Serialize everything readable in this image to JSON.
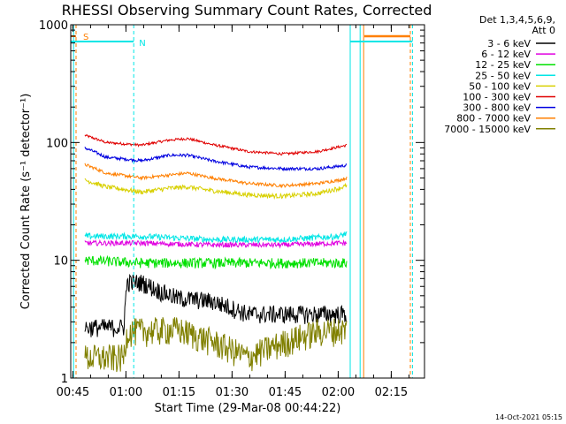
{
  "chart_data": {
    "type": "line",
    "title": "RHESSI Observing Summary Count Rates, Corrected",
    "xlabel": "Start Time (29-Mar-08 00:44:22)",
    "ylabel": "Corrected Count Rate (s⁻¹ detector⁻¹)",
    "x_unit": "minutes after 00:44:22 UT",
    "xlim": [
      0,
      100
    ],
    "ylim": [
      1,
      1000
    ],
    "yscale": "log",
    "grid": false,
    "x_ticks": [
      {
        "label": "00:45",
        "x": 0.6
      },
      {
        "label": "01:00",
        "x": 15.6
      },
      {
        "label": "01:15",
        "x": 30.6
      },
      {
        "label": "01:30",
        "x": 45.6
      },
      {
        "label": "01:45",
        "x": 60.6
      },
      {
        "label": "02:00",
        "x": 75.6
      },
      {
        "label": "02:15",
        "x": 90.6
      }
    ],
    "y_ticks": [
      {
        "label": "1",
        "y": 1
      },
      {
        "label": "10",
        "y": 10
      },
      {
        "label": "100",
        "y": 100
      },
      {
        "label": "1000",
        "y": 1000
      }
    ],
    "legend": {
      "position": "right",
      "header": [
        "Det 1,3,4,5,6,9,",
        "Att 0"
      ],
      "entries": [
        {
          "label": "3 - 6 keV",
          "color": "#000000"
        },
        {
          "label": "6 - 12 keV",
          "color": "#e000e0"
        },
        {
          "label": "12 - 25 keV",
          "color": "#00e000"
        },
        {
          "label": "25 - 50 keV",
          "color": "#00e6e6"
        },
        {
          "label": "50 - 100 keV",
          "color": "#d8d000"
        },
        {
          "label": "100 - 300 keV",
          "color": "#e00000"
        },
        {
          "label": "300 - 800 keV",
          "color": "#0000e0"
        },
        {
          "label": "800 - 7000 keV",
          "color": "#ff7f00"
        },
        {
          "label": "7000 - 15000 keV",
          "color": "#808000"
        }
      ]
    },
    "series": [
      {
        "name": "100 - 300 keV",
        "color": "#e00000",
        "noise": 0.025,
        "x": [
          4,
          10,
          20,
          28,
          33,
          40,
          50,
          60,
          70,
          76,
          78
        ],
        "y": [
          115,
          100,
          95,
          105,
          108,
          96,
          84,
          80,
          84,
          92,
          95
        ]
      },
      {
        "name": "300 - 800 keV",
        "color": "#0000e0",
        "noise": 0.03,
        "x": [
          4,
          10,
          20,
          28,
          33,
          40,
          50,
          60,
          70,
          76,
          78
        ],
        "y": [
          90,
          75,
          70,
          78,
          78,
          70,
          62,
          60,
          60,
          63,
          64
        ]
      },
      {
        "name": "800 - 7000 keV",
        "color": "#ff7f00",
        "noise": 0.03,
        "x": [
          4,
          10,
          20,
          28,
          33,
          40,
          50,
          60,
          70,
          76,
          78
        ],
        "y": [
          65,
          55,
          50,
          53,
          55,
          50,
          45,
          43,
          45,
          48,
          50
        ]
      },
      {
        "name": "50 - 100 keV",
        "color": "#d8d000",
        "noise": 0.045,
        "x": [
          4,
          10,
          20,
          28,
          33,
          40,
          50,
          60,
          70,
          76,
          78
        ],
        "y": [
          48,
          42,
          38,
          41,
          42,
          39,
          36,
          35,
          37,
          41,
          43
        ]
      },
      {
        "name": "25 - 50 keV",
        "color": "#00e6e6",
        "noise": 0.06,
        "x": [
          4,
          20,
          40,
          60,
          76,
          78
        ],
        "y": [
          16,
          16,
          15,
          15,
          16,
          17
        ]
      },
      {
        "name": "6 - 12 keV",
        "color": "#e000e0",
        "noise": 0.05,
        "x": [
          4,
          20,
          40,
          60,
          76,
          78
        ],
        "y": [
          14,
          14,
          13.5,
          13.5,
          14,
          14
        ]
      },
      {
        "name": "12 - 25 keV",
        "color": "#00e000",
        "noise": 0.1,
        "x": [
          4,
          20,
          40,
          60,
          76,
          78
        ],
        "y": [
          10,
          9.5,
          9.5,
          9.5,
          9.5,
          9.5
        ]
      },
      {
        "name": "3 - 6 keV",
        "color": "#000000",
        "noise": 0.18,
        "x": [
          4,
          15,
          16,
          20,
          25,
          30,
          40,
          50,
          60,
          70,
          78
        ],
        "y": [
          2.7,
          2.7,
          6.5,
          6.5,
          5.5,
          4.8,
          4.5,
          3.5,
          3.5,
          3.5,
          3.5
        ]
      },
      {
        "name": "7000 - 15000 keV",
        "color": "#808000",
        "noise": 0.28,
        "x": [
          4,
          15,
          16,
          30,
          50,
          70,
          78
        ],
        "y": [
          1.5,
          1.5,
          2.5,
          2.6,
          1.5,
          2.5,
          2.6
        ]
      }
    ],
    "annotations": {
      "flag_markers": [
        {
          "label": "S",
          "color": "#ff7f00"
        },
        {
          "label": "N",
          "color": "#00e6e6"
        }
      ]
    }
  },
  "footer": {
    "timestamp": "14-Oct-2021 05:15"
  }
}
